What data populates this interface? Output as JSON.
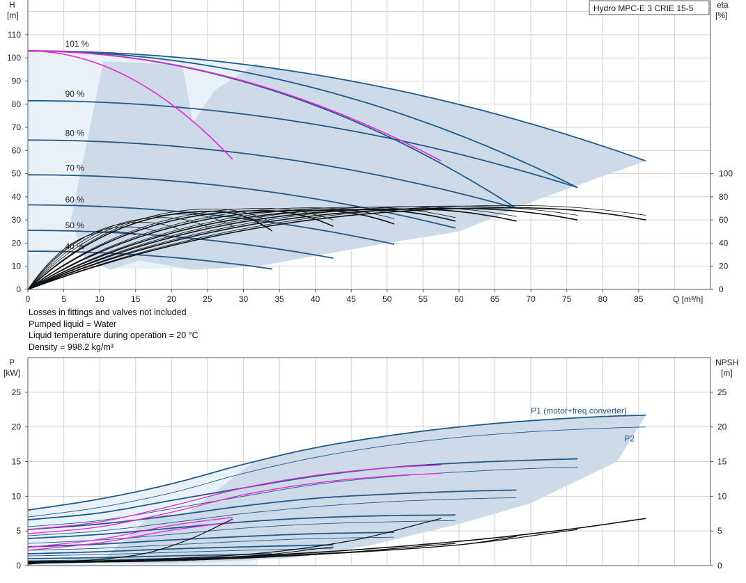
{
  "product_title": "Hydro MPC-E 3 CRIE 15-5",
  "notes": [
    "Losses in fittings and valves not included",
    "Pumped liquid = Water",
    "Liquid temperature during operation = 20 °C",
    "Density = 998.2 kg/m³"
  ],
  "colors": {
    "blue": "#1f5a8c",
    "magenta": "#ee22dd",
    "black": "#111111",
    "area": "#ccdbe7",
    "area_light": "#e9f2f9",
    "grid": "#d3d3d3"
  },
  "chart_data": [
    {
      "type": "line",
      "name_top": "head_chart",
      "xlabel": "Q [m³/h]",
      "ylabel_left": [
        "H",
        "[m]"
      ],
      "ylabel_right": [
        "eta",
        "[%]"
      ],
      "xlim": [
        0,
        95
      ],
      "ylim": [
        0,
        125
      ],
      "xticks": [
        0,
        5,
        10,
        15,
        20,
        25,
        30,
        35,
        40,
        45,
        50,
        55,
        60,
        65,
        70,
        75,
        80,
        85
      ],
      "yticks": [
        0,
        10,
        20,
        30,
        40,
        50,
        60,
        70,
        80,
        90,
        100,
        110
      ],
      "eta_ticks": [
        0,
        20,
        40,
        60,
        80,
        100
      ],
      "eta_scale": 0.3175,
      "head_curves": [
        {
          "label": "101 %",
          "label_x": 5,
          "label_y": 106,
          "color": "blue",
          "H0": 103,
          "qmax": 86,
          "Hend": 55.5
        },
        {
          "label": "",
          "color": "blue",
          "H0": 103,
          "qmax": 76.5,
          "Hend": 44
        },
        {
          "label": "",
          "color": "blue",
          "H0": 103,
          "qmax": 68,
          "Hend": 35
        },
        {
          "label": "90 %",
          "label_x": 5,
          "label_y": 84.5,
          "color": "blue",
          "H0": 81.5,
          "qmax": 76.5,
          "Hend": 44
        },
        {
          "label": "80 %",
          "label_x": 5,
          "label_y": 67.5,
          "color": "blue",
          "H0": 64.5,
          "qmax": 68,
          "Hend": 35
        },
        {
          "label": "70 %",
          "label_x": 5,
          "label_y": 52.5,
          "color": "blue",
          "H0": 49.5,
          "qmax": 59.5,
          "Hend": 26.5
        },
        {
          "label": "60 %",
          "label_x": 5,
          "label_y": 38.8,
          "color": "blue",
          "H0": 36.5,
          "qmax": 51,
          "Hend": 19.5
        },
        {
          "label": "50 %",
          "label_x": 5,
          "label_y": 27.6,
          "color": "blue",
          "H0": 25.5,
          "qmax": 42.5,
          "Hend": 13.5
        },
        {
          "label": "40 %",
          "label_x": 5,
          "label_y": 18.6,
          "color": "blue",
          "H0": 16.5,
          "qmax": 34,
          "Hend": 8.8
        },
        {
          "label": "",
          "color": "magenta",
          "H0": 103,
          "qmax": 57.5,
          "Hend": 55.5
        },
        {
          "label": "",
          "color": "magenta",
          "H0": 103,
          "qmax": 28.7,
          "Hend": 55.5
        }
      ],
      "eta_curves": [
        {
          "qend": 86,
          "peak": 70.5,
          "qpk": 68,
          "end": 60,
          "w": 1.6
        },
        {
          "qend": 86,
          "peak": 72.5,
          "qpk": 68,
          "end": 64,
          "w": 0.8
        },
        {
          "qend": 76.5,
          "peak": 70,
          "qpk": 60,
          "end": 60,
          "w": 1.6
        },
        {
          "qend": 76.5,
          "peak": 72,
          "qpk": 60,
          "end": 64,
          "w": 0.8
        },
        {
          "qend": 68,
          "peak": 69.5,
          "qpk": 53,
          "end": 59,
          "w": 1.6
        },
        {
          "qend": 68,
          "peak": 71.5,
          "qpk": 53,
          "end": 63,
          "w": 0.8
        },
        {
          "qend": 59.5,
          "peak": 69,
          "qpk": 47,
          "end": 59,
          "w": 1.6
        },
        {
          "qend": 59.5,
          "peak": 71,
          "qpk": 47,
          "end": 62,
          "w": 0.8
        },
        {
          "qend": 51,
          "peak": 68.5,
          "qpk": 40,
          "end": 56.5,
          "w": 1.6
        },
        {
          "qend": 51,
          "peak": 70.5,
          "qpk": 40,
          "end": 61,
          "w": 0.8
        },
        {
          "qend": 42.5,
          "peak": 68,
          "qpk": 33,
          "end": 54.5,
          "w": 1.6
        },
        {
          "qend": 42.5,
          "peak": 70,
          "qpk": 33,
          "end": 60,
          "w": 0.8
        },
        {
          "qend": 34,
          "peak": 67.5,
          "qpk": 26,
          "end": 50.5,
          "w": 1.6
        },
        {
          "qend": 34,
          "peak": 69.5,
          "qpk": 26,
          "end": 58,
          "w": 0.8
        },
        {
          "qend": 28.7,
          "peak": 65,
          "qpk": 22,
          "end": 54,
          "w": 0.8
        },
        {
          "qend": 25,
          "peak": 62,
          "qpk": 19,
          "end": 54,
          "w": 0.8
        },
        {
          "qend": 21,
          "peak": 58,
          "qpk": 16,
          "end": 52,
          "w": 0.8
        },
        {
          "qend": 18,
          "peak": 54,
          "qpk": 14,
          "end": 50,
          "w": 0.8
        },
        {
          "qend": 15,
          "peak": 50,
          "qpk": 12,
          "end": 47,
          "w": 0.8
        }
      ]
    },
    {
      "type": "line",
      "name_top": "power_chart",
      "ylabel_left": [
        "P",
        "[kW]"
      ],
      "ylabel_right": [
        "NPSH",
        "[m]"
      ],
      "xlim": [
        0,
        95
      ],
      "ylim": [
        0,
        30
      ],
      "yticks": [
        0,
        5,
        10,
        15,
        20,
        25
      ],
      "series_labels": [
        {
          "text": "P1 (motor+freq.converter)",
          "x": 70,
          "y": 22.3
        },
        {
          "text": "P2",
          "x": 83,
          "y": 18.3
        }
      ],
      "p1_curves": [
        {
          "q": [
            0,
            10,
            20,
            30,
            40,
            50,
            60,
            70,
            80,
            86
          ],
          "p": [
            8,
            9.6,
            11.8,
            14.6,
            17,
            18.7,
            20,
            20.9,
            21.5,
            21.7
          ]
        },
        {
          "q": [
            0,
            10,
            20,
            30,
            40,
            50,
            60,
            70,
            76.5
          ],
          "p": [
            6.6,
            7.6,
            9.4,
            11.2,
            12.9,
            14.1,
            14.8,
            15.2,
            15.4
          ]
        },
        {
          "q": [
            0,
            10,
            20,
            30,
            40,
            50,
            60,
            68
          ],
          "p": [
            5.2,
            6,
            7.2,
            8.6,
            9.7,
            10.3,
            10.7,
            10.9
          ]
        },
        {
          "q": [
            0,
            10,
            20,
            30,
            40,
            50,
            59.5
          ],
          "p": [
            3.9,
            4.5,
            5.4,
            6.3,
            6.9,
            7.2,
            7.3
          ]
        },
        {
          "q": [
            0,
            10,
            20,
            30,
            40,
            51
          ],
          "p": [
            2.7,
            3.1,
            3.7,
            4.2,
            4.6,
            4.8
          ]
        },
        {
          "q": [
            0,
            10,
            20,
            30,
            42.5
          ],
          "p": [
            1.7,
            2.0,
            2.4,
            2.7,
            3.0
          ]
        },
        {
          "q": [
            0,
            10,
            20,
            30,
            34
          ],
          "p": [
            1.0,
            1.15,
            1.4,
            1.6,
            1.7
          ]
        }
      ],
      "p2_curves": [
        {
          "q": [
            0,
            10,
            20,
            30,
            40,
            50,
            60,
            70,
            80,
            86
          ],
          "p": [
            7.0,
            8.4,
            10.5,
            13.3,
            15.6,
            17.3,
            18.5,
            19.3,
            19.8,
            20.0
          ]
        },
        {
          "q": [
            0,
            10,
            20,
            30,
            40,
            50,
            60,
            70,
            76.5
          ],
          "p": [
            5.6,
            6.5,
            8.2,
            10,
            11.7,
            12.8,
            13.5,
            14,
            14.2
          ]
        },
        {
          "q": [
            0,
            10,
            20,
            30,
            40,
            50,
            60,
            68
          ],
          "p": [
            4.3,
            5.0,
            6.2,
            7.5,
            8.5,
            9.2,
            9.6,
            9.8
          ]
        },
        {
          "q": [
            0,
            10,
            20,
            30,
            40,
            50,
            59.5
          ],
          "p": [
            3.2,
            3.7,
            4.5,
            5.4,
            6.0,
            6.3,
            6.5
          ]
        },
        {
          "q": [
            0,
            10,
            20,
            30,
            40,
            51
          ],
          "p": [
            2.2,
            2.5,
            3.0,
            3.5,
            3.9,
            4.1
          ]
        },
        {
          "q": [
            0,
            10,
            20,
            30,
            42.5
          ],
          "p": [
            1.4,
            1.6,
            1.9,
            2.2,
            2.5
          ]
        },
        {
          "q": [
            0,
            10,
            20,
            30,
            34
          ],
          "p": [
            0.7,
            0.85,
            1.05,
            1.25,
            1.35
          ]
        }
      ],
      "p_magenta": [
        {
          "q": [
            0,
            10,
            20,
            30,
            40,
            50,
            57.5
          ],
          "p": [
            5.2,
            6.3,
            8.6,
            11.2,
            13.0,
            14.1,
            14.5
          ]
        },
        {
          "q": [
            0,
            10,
            20,
            30,
            40,
            50,
            57.5
          ],
          "p": [
            4.6,
            5.6,
            7.7,
            10.2,
            11.9,
            12.9,
            13.3
          ]
        },
        {
          "q": [
            0,
            10,
            20,
            28.7
          ],
          "p": [
            2.6,
            3.8,
            5.8,
            7.0
          ]
        },
        {
          "q": [
            0,
            10,
            20,
            28.7
          ],
          "p": [
            2.2,
            3.3,
            5.1,
            6.3
          ]
        }
      ],
      "npsh_curves": [
        {
          "q": [
            0,
            20,
            40,
            60,
            75,
            86
          ],
          "n": [
            0.5,
            0.9,
            1.9,
            3.5,
            5.2,
            6.8
          ],
          "w": 1.6
        },
        {
          "q": [
            0,
            20,
            40,
            60,
            76.5
          ],
          "n": [
            0.6,
            0.9,
            1.7,
            3.0,
            5.2
          ],
          "w": 1.2
        },
        {
          "q": [
            0,
            20,
            40,
            60,
            68
          ],
          "n": [
            0.5,
            0.8,
            1.6,
            3.0,
            4.2
          ],
          "w": 1.2
        },
        {
          "q": [
            0,
            20,
            40,
            59.5
          ],
          "n": [
            0.4,
            0.7,
            1.6,
            3.2
          ],
          "w": 1.2
        },
        {
          "q": [
            0,
            30,
            45,
            57.5
          ],
          "n": [
            0.3,
            1.6,
            3.6,
            6.8
          ],
          "w": 1.2
        },
        {
          "q": [
            0,
            30,
            42.5
          ],
          "n": [
            0.4,
            1.3,
            2.7
          ],
          "w": 1.0
        },
        {
          "q": [
            0,
            15,
            22,
            28.7
          ],
          "n": [
            0.2,
            1.5,
            3.6,
            6.8
          ],
          "w": 1.2
        },
        {
          "q": [
            0,
            20,
            34
          ],
          "n": [
            0.3,
            0.8,
            1.6
          ],
          "w": 1.0
        }
      ]
    }
  ]
}
